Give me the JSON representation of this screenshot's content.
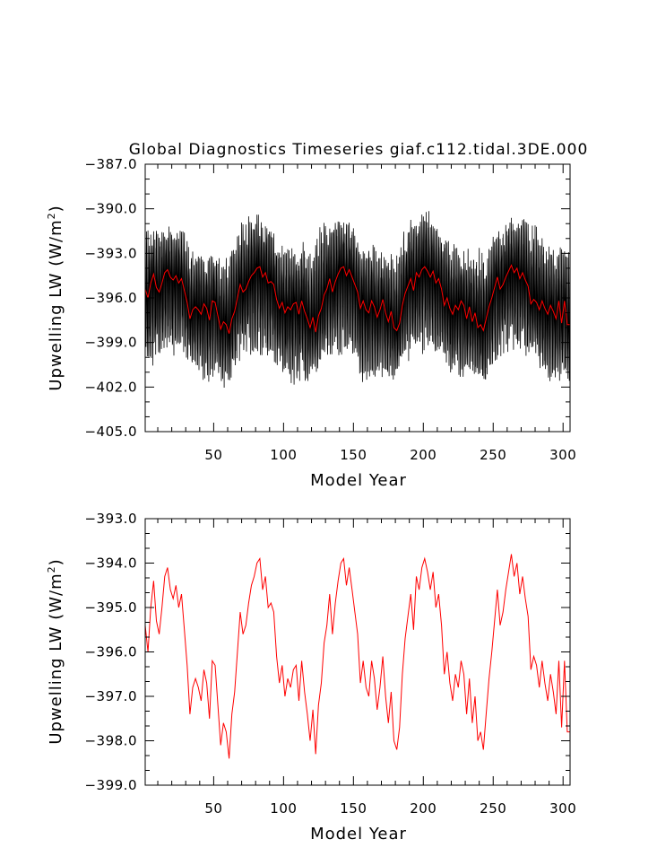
{
  "figure": {
    "title": "Global Diagnostics Timeseries giaf.c112.tidal.3DE.000"
  },
  "chart_data": [
    {
      "type": "line",
      "xlabel": "Model Year",
      "ylabel_main": "Upwelling LW  (W/m",
      "ylabel_sup": "2",
      "ylabel_end": ")",
      "xlim": [
        1,
        305
      ],
      "ylim": [
        -405.0,
        -387.0
      ],
      "x_ticks": [
        50,
        100,
        150,
        200,
        250,
        300
      ],
      "x_tick_labels": [
        "50",
        "100",
        "150",
        "200",
        "250",
        "300"
      ],
      "y_ticks": [
        -405,
        -402,
        -399,
        -396,
        -393,
        -390,
        -387
      ],
      "y_tick_labels": [
        "−405.0",
        "−402.0",
        "−399.0",
        "−396.0",
        "−393.0",
        "−390.0",
        "−387.0"
      ],
      "grid": false,
      "colors": {
        "monthly": "#000000",
        "annual": "#ff0000"
      },
      "series": [
        {
          "kind": "monthly",
          "color": "#000000",
          "envelope": {
            "x": [
              1,
              5,
              10,
              15,
              20,
              25,
              30,
              35,
              40,
              45,
              50,
              55,
              60,
              65,
              70,
              75,
              80,
              85,
              90,
              95,
              100,
              105,
              110,
              115,
              120,
              125,
              130,
              135,
              140,
              145,
              150,
              155,
              160,
              165,
              170,
              175,
              180,
              185,
              190,
              195,
              200,
              205,
              210,
              215,
              220,
              225,
              230,
              235,
              240,
              245,
              250,
              255,
              260,
              265,
              270,
              275,
              280,
              285,
              290,
              295,
              300,
              305
            ],
            "upper": [
              -391.0,
              -391.6,
              -391.2,
              -391.5,
              -390.9,
              -391.2,
              -391.6,
              -392.5,
              -393.0,
              -392.8,
              -392.6,
              -393.4,
              -393.0,
              -391.5,
              -390.8,
              -390.4,
              -390.2,
              -390.5,
              -390.7,
              -391.9,
              -392.6,
              -392.4,
              -392.6,
              -392.1,
              -392.7,
              -391.3,
              -390.8,
              -390.7,
              -390.6,
              -390.8,
              -391.0,
              -392.3,
              -392.3,
              -392.2,
              -392.8,
              -392.9,
              -393.1,
              -391.7,
              -390.6,
              -390.6,
              -390.1,
              -390.0,
              -390.8,
              -391.1,
              -392.1,
              -392.5,
              -392.5,
              -392.8,
              -392.1,
              -393.2,
              -391.6,
              -391.0,
              -390.8,
              -390.4,
              -390.2,
              -391.0,
              -390.6,
              -391.8,
              -392.4,
              -392.7,
              -392.2,
              -392.6
            ],
            "lower": [
              -400.3,
              -401.1,
              -400.6,
              -400.0,
              -399.9,
              -399.9,
              -400.1,
              -401.0,
              -401.5,
              -401.8,
              -401.3,
              -402.0,
              -402.1,
              -401.0,
              -400.1,
              -399.9,
              -399.8,
              -400.2,
              -400.1,
              -400.9,
              -401.4,
              -402.0,
              -401.9,
              -401.7,
              -401.6,
              -400.9,
              -400.4,
              -399.9,
              -399.9,
              -400.0,
              -400.1,
              -401.6,
              -401.9,
              -401.6,
              -401.8,
              -401.6,
              -401.9,
              -400.7,
              -400.2,
              -399.7,
              -399.8,
              -399.7,
              -400.4,
              -400.5,
              -401.7,
              -401.4,
              -401.6,
              -401.4,
              -401.8,
              -402.2,
              -401.2,
              -400.7,
              -399.8,
              -399.8,
              -400.1,
              -400.2,
              -399.8,
              -401.4,
              -401.6,
              -401.7,
              -401.7,
              -402.0
            ],
            "amplitude": 4.6
          },
          "values_note": ""
        },
        {
          "kind": "annual",
          "color": "#ff0000",
          "x": [
            1,
            3,
            5,
            7,
            9,
            11,
            13,
            15,
            17,
            19,
            21,
            23,
            25,
            27,
            29,
            31,
            33,
            35,
            37,
            39,
            41,
            43,
            45,
            47,
            49,
            51,
            53,
            55,
            57,
            59,
            61,
            63,
            65,
            67,
            69,
            71,
            73,
            75,
            77,
            79,
            81,
            83,
            85,
            87,
            89,
            91,
            93,
            95,
            97,
            99,
            101,
            103,
            105,
            107,
            109,
            111,
            113,
            115,
            117,
            119,
            121,
            123,
            125,
            127,
            129,
            131,
            133,
            135,
            137,
            139,
            141,
            143,
            145,
            147,
            149,
            151,
            153,
            155,
            157,
            159,
            161,
            163,
            165,
            167,
            169,
            171,
            173,
            175,
            177,
            179,
            181,
            183,
            185,
            187,
            189,
            191,
            193,
            195,
            197,
            199,
            201,
            203,
            205,
            207,
            209,
            211,
            213,
            215,
            217,
            219,
            221,
            223,
            225,
            227,
            229,
            231,
            233,
            235,
            237,
            239,
            241,
            243,
            245,
            247,
            249,
            251,
            253,
            255,
            257,
            259,
            261,
            263,
            265,
            267,
            269,
            271,
            273,
            275,
            277,
            279,
            281,
            283,
            285,
            287,
            289,
            291,
            293,
            295,
            297,
            299,
            301,
            303,
            305
          ],
          "values": [
            -395.4,
            -396.0,
            -395.0,
            -394.4,
            -395.3,
            -395.6,
            -395.0,
            -394.3,
            -394.1,
            -394.6,
            -394.8,
            -394.5,
            -395.0,
            -394.7,
            -395.5,
            -396.3,
            -397.4,
            -396.8,
            -396.6,
            -396.8,
            -397.1,
            -396.4,
            -396.7,
            -397.5,
            -396.2,
            -396.3,
            -397.2,
            -398.1,
            -397.6,
            -397.8,
            -398.4,
            -397.4,
            -396.9,
            -396.0,
            -395.1,
            -395.6,
            -395.4,
            -394.9,
            -394.5,
            -394.3,
            -394.0,
            -393.9,
            -394.6,
            -394.3,
            -395.0,
            -394.9,
            -395.1,
            -396.1,
            -396.7,
            -396.3,
            -397.0,
            -396.6,
            -396.8,
            -396.4,
            -396.3,
            -397.1,
            -396.2,
            -396.9,
            -397.4,
            -398.0,
            -397.3,
            -398.3,
            -397.2,
            -396.7,
            -395.8,
            -395.4,
            -394.7,
            -395.6,
            -394.9,
            -394.4,
            -394.0,
            -393.9,
            -394.5,
            -394.1,
            -394.6,
            -395.1,
            -395.6,
            -396.7,
            -396.2,
            -396.8,
            -397.0,
            -396.2,
            -396.6,
            -397.3,
            -396.8,
            -396.1,
            -397.0,
            -397.6,
            -396.9,
            -398.0,
            -398.2,
            -397.7,
            -396.5,
            -395.7,
            -395.2,
            -394.7,
            -395.5,
            -394.3,
            -394.6,
            -394.1,
            -393.9,
            -394.2,
            -394.6,
            -394.2,
            -395.0,
            -394.7,
            -395.4,
            -396.5,
            -396.0,
            -396.7,
            -397.1,
            -396.5,
            -396.8,
            -396.2,
            -396.5,
            -397.4,
            -396.6,
            -397.6,
            -397.0,
            -398.0,
            -397.8,
            -398.2,
            -397.4,
            -396.6,
            -396.0,
            -395.3,
            -394.6,
            -395.4,
            -395.1,
            -394.6,
            -394.2,
            -393.8,
            -394.3,
            -394.0,
            -394.7,
            -394.3,
            -394.8,
            -395.2,
            -396.4,
            -396.1,
            -396.3,
            -396.8,
            -396.2,
            -396.7,
            -397.1,
            -396.5,
            -396.9,
            -397.4,
            -396.2,
            -397.7,
            -396.2,
            -397.8,
            -397.8
          ]
        }
      ]
    },
    {
      "type": "line",
      "xlabel": "Model Year",
      "ylabel_main": "Upwelling LW  (W/m",
      "ylabel_sup": "2",
      "ylabel_end": ")",
      "xlim": [
        1,
        305
      ],
      "ylim": [
        -399.0,
        -393.0
      ],
      "x_ticks": [
        50,
        100,
        150,
        200,
        250,
        300
      ],
      "x_tick_labels": [
        "50",
        "100",
        "150",
        "200",
        "250",
        "300"
      ],
      "y_ticks": [
        -399,
        -398,
        -397,
        -396,
        -395,
        -394,
        -393
      ],
      "y_tick_labels": [
        "−399.0",
        "−398.0",
        "−397.0",
        "−396.0",
        "−395.0",
        "−394.0",
        "−393.0"
      ],
      "grid": false,
      "series_ref": "annual",
      "color": "#ff0000"
    }
  ]
}
